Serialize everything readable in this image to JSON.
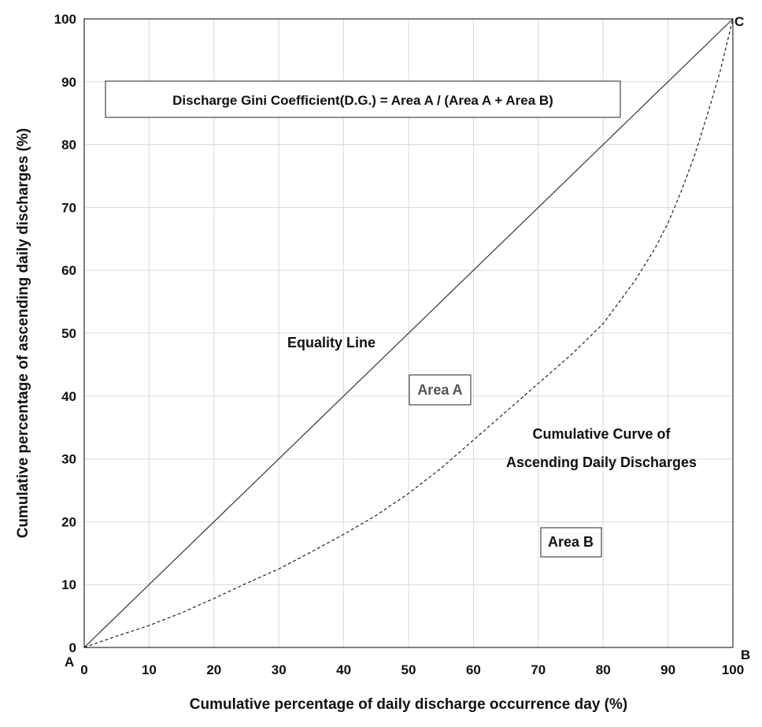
{
  "chart_data": {
    "type": "line",
    "xlabel": "Cumulative percentage of daily discharge occurrence day (%)",
    "ylabel": "Cumulative percentage of ascending daily discharges (%)",
    "xlim": [
      0,
      100
    ],
    "ylim": [
      0,
      100
    ],
    "xticks": [
      0,
      10,
      20,
      30,
      40,
      50,
      60,
      70,
      80,
      90,
      100
    ],
    "yticks": [
      0,
      10,
      20,
      30,
      40,
      50,
      60,
      70,
      80,
      90,
      100
    ],
    "grid": true,
    "series": [
      {
        "style": "solid",
        "color": "#333333",
        "x": [
          0,
          100
        ],
        "y": [
          0,
          100
        ]
      },
      {
        "style": "dashed",
        "color": "#222222",
        "x": [
          0,
          5,
          10,
          15,
          20,
          25,
          30,
          35,
          40,
          45,
          50,
          55,
          60,
          65,
          70,
          75,
          80,
          85,
          88,
          90,
          92,
          94,
          96,
          98,
          100
        ],
        "y": [
          0,
          1.8,
          3.5,
          5.5,
          7.8,
          10.2,
          12.5,
          15.2,
          18,
          21,
          24.5,
          28.5,
          33,
          37.5,
          42,
          46.5,
          51.5,
          58.5,
          63.5,
          67.5,
          72.5,
          78,
          84.5,
          91.5,
          100
        ]
      }
    ],
    "formula_box": "Discharge Gini Coefficient(D.G.) = Area A / (Area A + Area B)",
    "annotations": {
      "equality": "Equality Line",
      "area_a": "Area A",
      "area_b": "Area B",
      "curve_line1": "Cumulative Curve of",
      "curve_line2": "Ascending Daily Discharges"
    },
    "corner_labels": {
      "a": "A",
      "b": "B",
      "c": "C"
    }
  },
  "colors": {
    "grid": "#d9d9d9",
    "frame": "#000000",
    "area_a_text": "#555555"
  }
}
